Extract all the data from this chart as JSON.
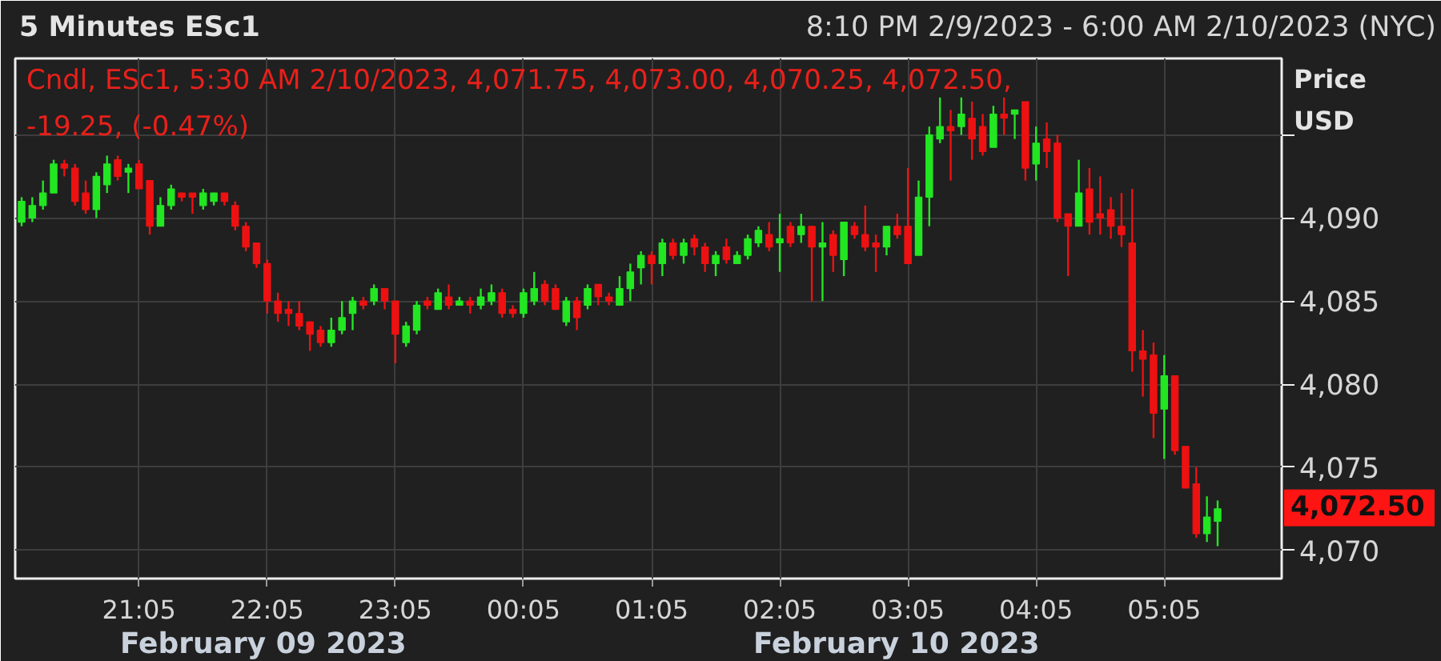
{
  "chart_data": {
    "type": "candlestick",
    "title": "5 Minutes ESc1",
    "subtitle": "8:10 PM 2/9/2023 - 6:00 AM 2/10/2023 (NYC)",
    "ylabel": "Price USD",
    "annotations": [
      "Cndl, ESc1, 5:30 AM 2/10/2023, 4,071.75, 4,073.00, 4,070.25, 4,072.50, -19.25, (-0.47%)",
      "4,072.50",
      "February 09 2023",
      "February 10 2023"
    ],
    "x": [
      "2023-02-09T20:10",
      "2023-02-09T20:15",
      "2023-02-09T20:20",
      "2023-02-09T20:25",
      "2023-02-09T20:30",
      "2023-02-09T20:35",
      "2023-02-09T20:40",
      "2023-02-09T20:45",
      "2023-02-09T20:50",
      "2023-02-09T20:55",
      "2023-02-09T21:00",
      "2023-02-09T21:05",
      "2023-02-09T21:10",
      "2023-02-09T21:15",
      "2023-02-09T21:20",
      "2023-02-09T21:25",
      "2023-02-09T21:30",
      "2023-02-09T21:35",
      "2023-02-09T21:40",
      "2023-02-09T21:45",
      "2023-02-09T21:50",
      "2023-02-09T21:55",
      "2023-02-09T22:00",
      "2023-02-09T22:05",
      "2023-02-09T22:10",
      "2023-02-09T22:15",
      "2023-02-09T22:20",
      "2023-02-09T22:25",
      "2023-02-09T22:30",
      "2023-02-09T22:35",
      "2023-02-09T22:40",
      "2023-02-09T22:45",
      "2023-02-09T22:50",
      "2023-02-09T22:55",
      "2023-02-09T23:00",
      "2023-02-09T23:05",
      "2023-02-09T23:10",
      "2023-02-09T23:15",
      "2023-02-09T23:20",
      "2023-02-09T23:25",
      "2023-02-09T23:30",
      "2023-02-09T23:35",
      "2023-02-09T23:40",
      "2023-02-09T23:45",
      "2023-02-09T23:50",
      "2023-02-09T23:55",
      "2023-02-10T00:00",
      "2023-02-10T00:05",
      "2023-02-10T00:10",
      "2023-02-10T00:15",
      "2023-02-10T00:20",
      "2023-02-10T00:25",
      "2023-02-10T00:30",
      "2023-02-10T00:35",
      "2023-02-10T00:40",
      "2023-02-10T00:45",
      "2023-02-10T00:50",
      "2023-02-10T00:55",
      "2023-02-10T01:00",
      "2023-02-10T01:05",
      "2023-02-10T01:10",
      "2023-02-10T01:15",
      "2023-02-10T01:20",
      "2023-02-10T01:25",
      "2023-02-10T01:30",
      "2023-02-10T01:35",
      "2023-02-10T01:40",
      "2023-02-10T01:45",
      "2023-02-10T01:50",
      "2023-02-10T01:55",
      "2023-02-10T02:00",
      "2023-02-10T02:05",
      "2023-02-10T02:10",
      "2023-02-10T02:15",
      "2023-02-10T02:20",
      "2023-02-10T02:25",
      "2023-02-10T02:30",
      "2023-02-10T02:35",
      "2023-02-10T02:40",
      "2023-02-10T02:45",
      "2023-02-10T02:50",
      "2023-02-10T02:55",
      "2023-02-10T03:00",
      "2023-02-10T03:05",
      "2023-02-10T03:10",
      "2023-02-10T03:15",
      "2023-02-10T03:20",
      "2023-02-10T03:25",
      "2023-02-10T03:30",
      "2023-02-10T03:35",
      "2023-02-10T03:40",
      "2023-02-10T03:45",
      "2023-02-10T03:50",
      "2023-02-10T03:55",
      "2023-02-10T04:00",
      "2023-02-10T04:05",
      "2023-02-10T04:10",
      "2023-02-10T04:15",
      "2023-02-10T04:20",
      "2023-02-10T04:25",
      "2023-02-10T04:30",
      "2023-02-10T04:35",
      "2023-02-10T04:40",
      "2023-02-10T04:45",
      "2023-02-10T04:50",
      "2023-02-10T04:55",
      "2023-02-10T05:00",
      "2023-02-10T05:05",
      "2023-02-10T05:10",
      "2023-02-10T05:15",
      "2023-02-10T05:20",
      "2023-02-10T05:25",
      "2023-02-10T05:30"
    ],
    "ohlc": [
      [
        4089.75,
        4091.25,
        4089.5,
        4091.0
      ],
      [
        4090.0,
        4091.25,
        4089.75,
        4090.75
      ],
      [
        4090.75,
        4092.25,
        4090.5,
        4091.5
      ],
      [
        4091.5,
        4093.5,
        4091.5,
        4093.25
      ],
      [
        4093.25,
        4093.5,
        4092.5,
        4093.0
      ],
      [
        4093.0,
        4093.25,
        4090.75,
        4091.0
      ],
      [
        4091.5,
        4092.25,
        4090.25,
        4090.5
      ],
      [
        4090.5,
        4092.75,
        4090.0,
        4092.5
      ],
      [
        4092.0,
        4093.75,
        4091.5,
        4093.25
      ],
      [
        4093.5,
        4093.75,
        4092.25,
        4092.5
      ],
      [
        4092.75,
        4093.25,
        4091.5,
        4093.0
      ],
      [
        4093.25,
        4093.5,
        4091.75,
        4091.75
      ],
      [
        4092.25,
        4092.25,
        4089.0,
        4089.5
      ],
      [
        4089.5,
        4091.25,
        4089.5,
        4090.75
      ],
      [
        4090.75,
        4092.0,
        4090.5,
        4091.75
      ],
      [
        4091.5,
        4091.5,
        4091.0,
        4091.25
      ],
      [
        4091.5,
        4091.5,
        4090.25,
        4091.25
      ],
      [
        4090.75,
        4091.75,
        4090.5,
        4091.5
      ],
      [
        4091.0,
        4091.5,
        4090.75,
        4091.5
      ],
      [
        4091.5,
        4091.5,
        4090.75,
        4091.0
      ],
      [
        4090.75,
        4091.0,
        4089.25,
        4089.5
      ],
      [
        4089.5,
        4089.75,
        4088.0,
        4088.25
      ],
      [
        4088.5,
        4088.5,
        4087.0,
        4087.25
      ],
      [
        4087.25,
        4087.5,
        4084.25,
        4085.0
      ],
      [
        4085.0,
        4085.5,
        4083.75,
        4084.25
      ],
      [
        4084.5,
        4085.0,
        4083.5,
        4084.25
      ],
      [
        4084.25,
        4085.0,
        4083.25,
        4083.5
      ],
      [
        4083.75,
        4083.75,
        4082.0,
        4083.0
      ],
      [
        4083.25,
        4083.5,
        4082.25,
        4082.5
      ],
      [
        4082.5,
        4084.0,
        4082.25,
        4083.25
      ],
      [
        4083.25,
        4085.0,
        4083.0,
        4084.0
      ],
      [
        4084.25,
        4085.25,
        4083.25,
        4085.0
      ],
      [
        4085.0,
        4085.25,
        4084.5,
        4084.75
      ],
      [
        4085.0,
        4086.0,
        4084.75,
        4085.75
      ],
      [
        4085.75,
        4085.75,
        4084.5,
        4085.0
      ],
      [
        4085.0,
        4085.0,
        4081.25,
        4083.0
      ],
      [
        4082.5,
        4083.75,
        4082.25,
        4083.5
      ],
      [
        4083.25,
        4085.0,
        4083.0,
        4084.75
      ],
      [
        4085.0,
        4085.25,
        4084.5,
        4084.75
      ],
      [
        4084.5,
        4085.75,
        4084.5,
        4085.5
      ],
      [
        4085.25,
        4086.0,
        4084.5,
        4084.75
      ],
      [
        4084.75,
        4085.25,
        4084.75,
        4085.0
      ],
      [
        4085.0,
        4085.25,
        4084.25,
        4084.75
      ],
      [
        4084.75,
        4085.75,
        4084.5,
        4085.25
      ],
      [
        4085.0,
        4086.0,
        4084.75,
        4085.5
      ],
      [
        4085.5,
        4085.75,
        4084.0,
        4084.25
      ],
      [
        4084.5,
        4084.75,
        4084.0,
        4084.25
      ],
      [
        4084.25,
        4085.75,
        4084.0,
        4085.5
      ],
      [
        4085.0,
        4086.75,
        4084.75,
        4085.75
      ],
      [
        4086.0,
        4086.25,
        4084.75,
        4085.0
      ],
      [
        4085.75,
        4086.0,
        4084.5,
        4084.5
      ],
      [
        4083.75,
        4085.25,
        4083.5,
        4085.0
      ],
      [
        4085.0,
        4085.25,
        4083.25,
        4084.0
      ],
      [
        4084.75,
        4086.0,
        4084.5,
        4085.75
      ],
      [
        4086.0,
        4086.0,
        4084.75,
        4085.25
      ],
      [
        4085.25,
        4085.5,
        4084.75,
        4085.0
      ],
      [
        4084.75,
        4086.5,
        4084.75,
        4085.75
      ],
      [
        4085.75,
        4087.25,
        4085.0,
        4086.75
      ],
      [
        4087.0,
        4088.0,
        4086.0,
        4087.75
      ],
      [
        4087.75,
        4088.0,
        4086.0,
        4087.25
      ],
      [
        4087.25,
        4088.75,
        4086.5,
        4088.5
      ],
      [
        4088.5,
        4088.75,
        4087.5,
        4087.75
      ],
      [
        4087.75,
        4088.75,
        4087.25,
        4088.5
      ],
      [
        4088.75,
        4089.0,
        4087.75,
        4088.25
      ],
      [
        4088.25,
        4088.5,
        4086.75,
        4087.25
      ],
      [
        4087.25,
        4088.0,
        4086.5,
        4087.75
      ],
      [
        4088.25,
        4088.75,
        4087.25,
        4087.5
      ],
      [
        4087.25,
        4088.0,
        4087.25,
        4087.75
      ],
      [
        4087.75,
        4089.0,
        4087.5,
        4088.75
      ],
      [
        4088.5,
        4089.5,
        4088.25,
        4089.25
      ],
      [
        4089.0,
        4089.75,
        4088.0,
        4088.25
      ],
      [
        4088.5,
        4090.25,
        4086.75,
        4088.75
      ],
      [
        4089.5,
        4089.75,
        4088.25,
        4088.5
      ],
      [
        4089.0,
        4090.25,
        4088.5,
        4089.5
      ],
      [
        4089.5,
        4089.5,
        4085.0,
        4088.25
      ],
      [
        4088.25,
        4089.75,
        4085.0,
        4088.5
      ],
      [
        4089.0,
        4089.25,
        4086.75,
        4087.75
      ],
      [
        4087.5,
        4089.75,
        4086.5,
        4089.75
      ],
      [
        4089.5,
        4089.75,
        4088.75,
        4089.0
      ],
      [
        4089.0,
        4090.75,
        4088.0,
        4088.25
      ],
      [
        4088.5,
        4089.0,
        4086.75,
        4088.25
      ],
      [
        4088.25,
        4089.5,
        4087.75,
        4089.5
      ],
      [
        4089.5,
        4090.25,
        4088.75,
        4089.0
      ],
      [
        4089.5,
        4093.0,
        4087.25,
        4087.25
      ],
      [
        4087.75,
        4092.25,
        4087.75,
        4091.25
      ],
      [
        4091.25,
        4095.5,
        4089.5,
        4095.0
      ],
      [
        4094.75,
        4097.25,
        4094.5,
        4095.5
      ],
      [
        4095.5,
        4096.5,
        4092.25,
        4095.25
      ],
      [
        4095.5,
        4097.25,
        4095.0,
        4096.25
      ],
      [
        4096.0,
        4097.0,
        4093.5,
        4094.75
      ],
      [
        4095.5,
        4096.25,
        4093.75,
        4094.0
      ],
      [
        4094.25,
        4096.75,
        4094.25,
        4096.25
      ],
      [
        4096.25,
        4097.25,
        4095.0,
        4096.0
      ],
      [
        4096.25,
        4096.5,
        4094.75,
        4096.5
      ],
      [
        4097.0,
        4097.0,
        4092.25,
        4093.0
      ],
      [
        4093.25,
        4095.5,
        4092.25,
        4094.5
      ],
      [
        4094.75,
        4095.75,
        4093.0,
        4094.0
      ],
      [
        4094.5,
        4095.0,
        4089.75,
        4090.0
      ],
      [
        4090.25,
        4090.25,
        4086.5,
        4089.5
      ],
      [
        4089.5,
        4093.5,
        4089.5,
        4091.5
      ],
      [
        4091.75,
        4093.0,
        4089.0,
        4089.75
      ],
      [
        4090.25,
        4092.5,
        4089.0,
        4090.0
      ],
      [
        4090.5,
        4091.25,
        4088.75,
        4089.5
      ],
      [
        4089.5,
        4091.5,
        4088.25,
        4089.0
      ],
      [
        4088.5,
        4091.75,
        4080.75,
        4082.0
      ],
      [
        4082.0,
        4083.25,
        4079.25,
        4081.5
      ],
      [
        4081.75,
        4082.5,
        4076.75,
        4078.25
      ],
      [
        4078.5,
        4081.75,
        4075.5,
        4080.5
      ],
      [
        4080.5,
        4080.5,
        4075.75,
        4076.0
      ],
      [
        4076.25,
        4076.25,
        4073.75,
        4073.75
      ],
      [
        4074.0,
        4075.0,
        4070.75,
        4071.0
      ],
      [
        4071.0,
        4073.25,
        4070.5,
        4072.0
      ],
      [
        4071.75,
        4073.0,
        4070.25,
        4072.5
      ]
    ],
    "colors": [
      "#22e622",
      "#22e622",
      "#22e622",
      "#22e622",
      "#ee1111",
      "#ee1111",
      "#ee1111",
      "#22e622",
      "#22e622",
      "#ee1111",
      "#22e622",
      "#ee1111",
      "#ee1111",
      "#22e622",
      "#22e622",
      "#ee1111",
      "#ee1111",
      "#22e622",
      "#22e622",
      "#ee1111",
      "#ee1111",
      "#ee1111",
      "#ee1111",
      "#ee1111",
      "#ee1111",
      "#ee1111",
      "#ee1111",
      "#ee1111",
      "#ee1111",
      "#22e622",
      "#22e622",
      "#22e622",
      "#ee1111",
      "#22e622",
      "#ee1111",
      "#ee1111",
      "#22e622",
      "#22e622",
      "#ee1111",
      "#22e622",
      "#ee1111",
      "#22e622",
      "#ee1111",
      "#22e622",
      "#22e622",
      "#ee1111",
      "#ee1111",
      "#22e622",
      "#22e622",
      "#ee1111",
      "#ee1111",
      "#22e622",
      "#ee1111",
      "#22e622",
      "#ee1111",
      "#ee1111",
      "#22e622",
      "#22e622",
      "#22e622",
      "#ee1111",
      "#22e622",
      "#ee1111",
      "#22e622",
      "#ee1111",
      "#ee1111",
      "#22e622",
      "#ee1111",
      "#22e622",
      "#22e622",
      "#22e622",
      "#ee1111",
      "#22e622",
      "#ee1111",
      "#22e622",
      "#ee1111",
      "#22e622",
      "#ee1111",
      "#22e622",
      "#ee1111",
      "#ee1111",
      "#ee1111",
      "#22e622",
      "#ee1111",
      "#ee1111",
      "#22e622",
      "#22e622",
      "#22e622",
      "#ee1111",
      "#22e622",
      "#ee1111",
      "#ee1111",
      "#22e622",
      "#ee1111",
      "#22e622",
      "#ee1111",
      "#22e622",
      "#ee1111",
      "#ee1111",
      "#ee1111",
      "#22e622",
      "#ee1111",
      "#ee1111",
      "#ee1111",
      "#ee1111",
      "#ee1111",
      "#ee1111",
      "#ee1111",
      "#22e622",
      "#ee1111",
      "#ee1111",
      "#ee1111",
      "#22e622",
      "#22e622"
    ],
    "xlim": [
      "2023-02-09T20:07",
      "2023-02-10T06:00"
    ],
    "xticks": [
      {
        "value": "2023-02-09T21:05",
        "label": "21:05"
      },
      {
        "value": "2023-02-09T22:05",
        "label": "22:05"
      },
      {
        "value": "2023-02-09T23:05",
        "label": "23:05"
      },
      {
        "value": "2023-02-10T00:05",
        "label": "00:05"
      },
      {
        "value": "2023-02-10T01:05",
        "label": "01:05"
      },
      {
        "value": "2023-02-10T02:05",
        "label": "02:05"
      },
      {
        "value": "2023-02-10T03:05",
        "label": "03:05"
      },
      {
        "value": "2023-02-10T04:05",
        "label": "04:05"
      },
      {
        "value": "2023-02-10T05:05",
        "label": "05:05"
      }
    ],
    "ylim": [
      4068.3,
      4099.6
    ],
    "yticks": [
      {
        "value": 4070,
        "label": "4,070"
      },
      {
        "value": 4075,
        "label": "4,075"
      },
      {
        "value": 4080,
        "label": "4,080"
      },
      {
        "value": 4085,
        "label": "4,085"
      },
      {
        "value": 4090,
        "label": "4,090"
      },
      {
        "value": 4095,
        "label": null
      }
    ],
    "grid": true
  }
}
